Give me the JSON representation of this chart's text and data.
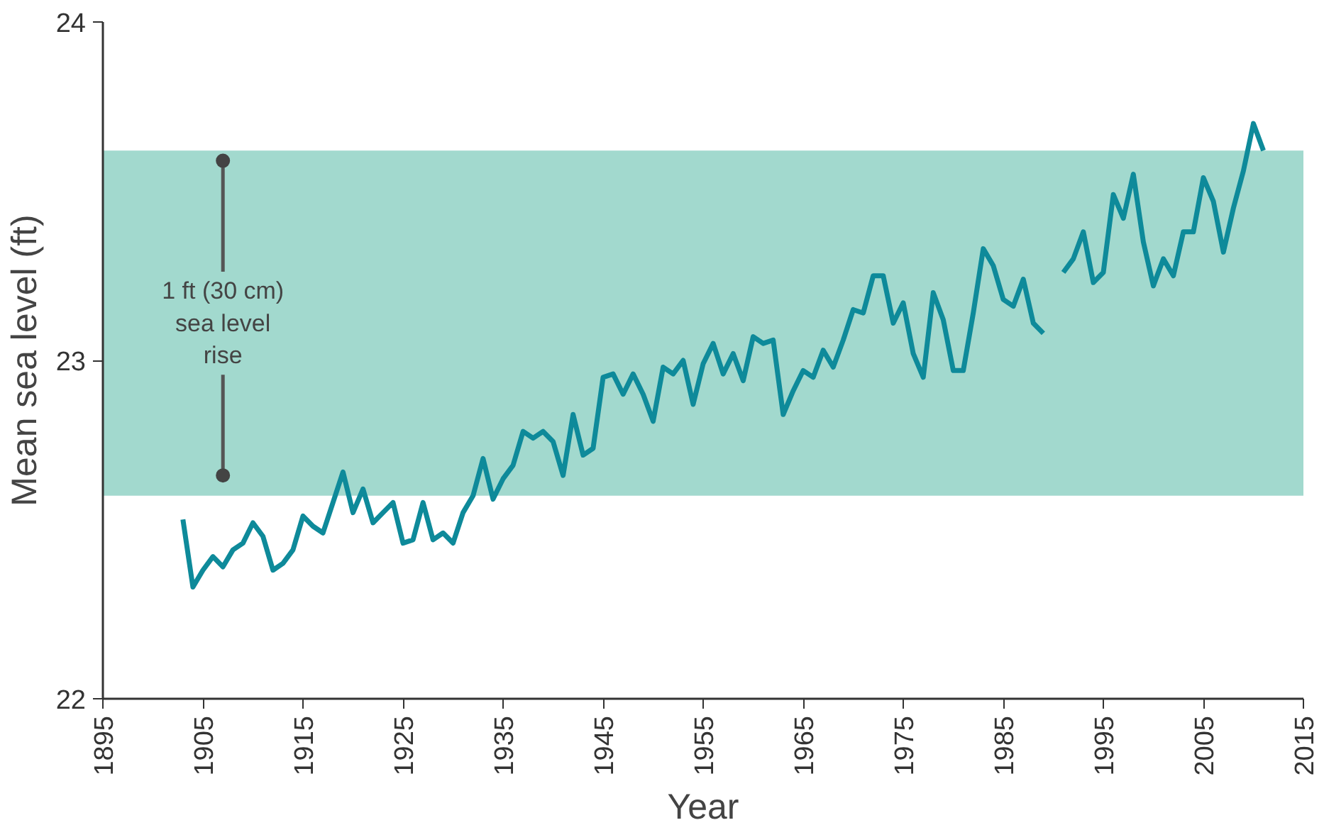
{
  "chart_data": {
    "type": "line",
    "xlabel": "Year",
    "ylabel": "Mean sea level (ft)",
    "x": [
      1903,
      1904,
      1905,
      1906,
      1907,
      1908,
      1909,
      1910,
      1911,
      1912,
      1913,
      1914,
      1915,
      1916,
      1917,
      1918,
      1919,
      1920,
      1921,
      1922,
      1923,
      1924,
      1925,
      1926,
      1927,
      1928,
      1929,
      1930,
      1931,
      1932,
      1933,
      1934,
      1935,
      1936,
      1937,
      1938,
      1939,
      1940,
      1941,
      1942,
      1943,
      1944,
      1945,
      1946,
      1947,
      1948,
      1949,
      1950,
      1951,
      1952,
      1953,
      1954,
      1955,
      1956,
      1957,
      1958,
      1959,
      1960,
      1961,
      1962,
      1963,
      1964,
      1965,
      1966,
      1967,
      1968,
      1969,
      1970,
      1971,
      1972,
      1973,
      1974,
      1975,
      1976,
      1977,
      1978,
      1979,
      1980,
      1981,
      1982,
      1983,
      1984,
      1985,
      1986,
      1987,
      1988,
      1989,
      1990,
      1991,
      1992,
      1993,
      1994,
      1995,
      1996,
      1997,
      1998,
      1999,
      2000,
      2001,
      2002,
      2003,
      2004,
      2005,
      2006,
      2007,
      2008,
      2009,
      2010,
      2011
    ],
    "series": [
      {
        "color": "#0e8a9a",
        "values": [
          22.53,
          22.33,
          22.38,
          22.42,
          22.39,
          22.44,
          22.46,
          22.52,
          22.48,
          22.38,
          22.4,
          22.44,
          22.54,
          22.51,
          22.49,
          22.58,
          22.67,
          22.55,
          22.62,
          22.52,
          22.55,
          22.58,
          22.46,
          22.47,
          22.58,
          22.47,
          22.49,
          22.46,
          22.55,
          22.6,
          22.71,
          22.59,
          22.65,
          22.69,
          22.79,
          22.77,
          22.79,
          22.76,
          22.66,
          22.84,
          22.72,
          22.74,
          22.95,
          22.96,
          22.9,
          22.96,
          22.9,
          22.82,
          22.98,
          22.96,
          23.0,
          22.87,
          22.99,
          23.05,
          22.96,
          23.02,
          22.94,
          23.07,
          23.05,
          23.06,
          22.84,
          22.91,
          22.97,
          22.95,
          23.03,
          22.98,
          23.06,
          23.15,
          23.14,
          23.25,
          23.25,
          23.11,
          23.17,
          23.02,
          22.95,
          23.2,
          23.12,
          22.97,
          22.97,
          23.14,
          23.33,
          23.28,
          23.18,
          23.16,
          23.24,
          23.11,
          23.08,
          null,
          23.26,
          23.3,
          23.38,
          23.23,
          23.26,
          23.49,
          23.42,
          23.55,
          23.35,
          23.22,
          23.3,
          23.25,
          23.38,
          23.38,
          23.54,
          23.47,
          23.32,
          23.45,
          23.56,
          23.7,
          23.62
        ]
      }
    ],
    "xlim": [
      1895,
      2015
    ],
    "ylim": [
      22,
      24
    ],
    "xticks": [
      1895,
      1905,
      1915,
      1925,
      1935,
      1945,
      1955,
      1965,
      1975,
      1985,
      1995,
      2005,
      2015
    ],
    "yticks": [
      22,
      23,
      24
    ],
    "bands": [
      {
        "axis": "y",
        "from": 22.6,
        "to": 23.62,
        "color": "#a2d9ce"
      }
    ],
    "annotations": [
      "1 ft (30 cm)\nsea level\nrise"
    ],
    "grid": false,
    "marker": "none",
    "line_style": "solid"
  }
}
